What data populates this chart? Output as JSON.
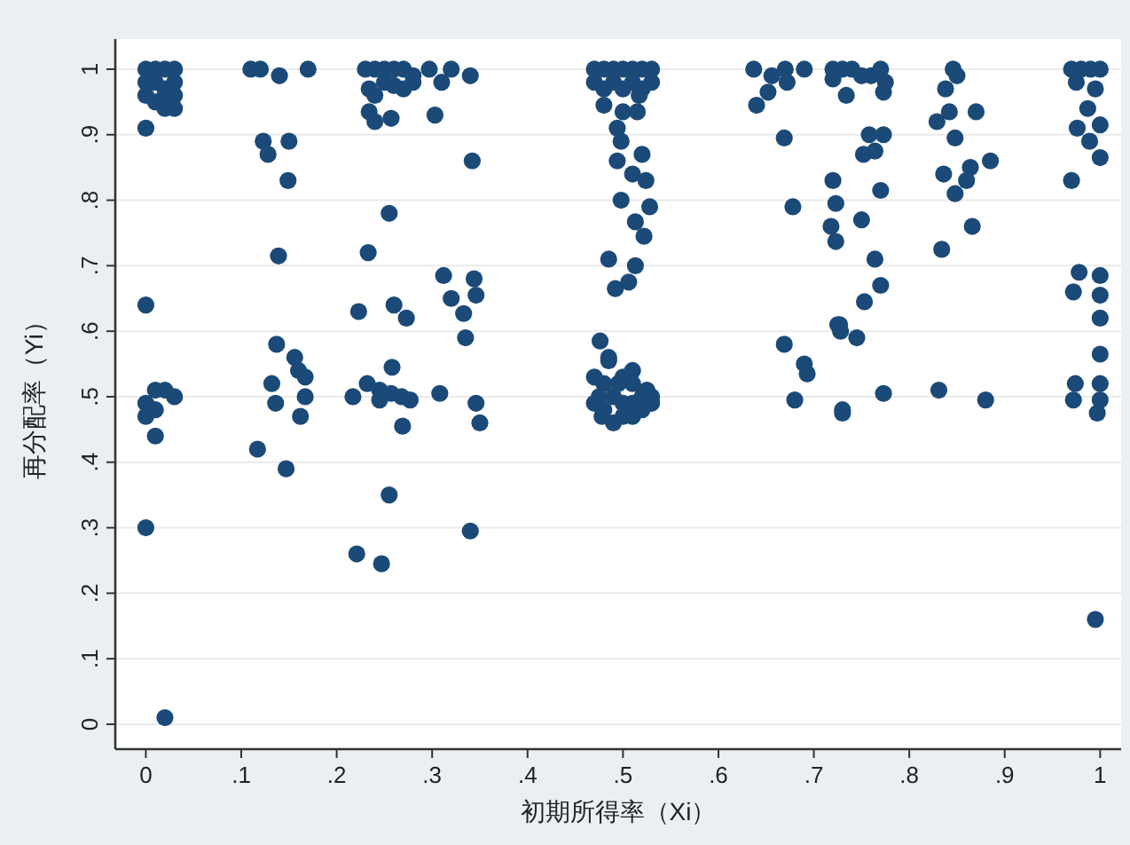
{
  "chart_data": {
    "type": "scatter",
    "xlabel": "初期所得率（Xi）",
    "ylabel": "再分配率（Yi）",
    "xlim": [
      -0.032,
      1.022
    ],
    "ylim": [
      -0.038,
      1.046
    ],
    "xticks": [
      {
        "value": 0,
        "label": "0"
      },
      {
        "value": 0.1,
        "label": ".1"
      },
      {
        "value": 0.2,
        "label": ".2"
      },
      {
        "value": 0.3,
        "label": ".3"
      },
      {
        "value": 0.4,
        "label": ".4"
      },
      {
        "value": 0.5,
        "label": ".5"
      },
      {
        "value": 0.6,
        "label": ".6"
      },
      {
        "value": 0.7,
        "label": ".7"
      },
      {
        "value": 0.8,
        "label": ".8"
      },
      {
        "value": 0.9,
        "label": ".9"
      },
      {
        "value": 1,
        "label": "1"
      }
    ],
    "yticks": [
      {
        "value": 0,
        "label": "0"
      },
      {
        "value": 0.1,
        "label": ".1"
      },
      {
        "value": 0.2,
        "label": ".2"
      },
      {
        "value": 0.3,
        "label": ".3"
      },
      {
        "value": 0.4,
        "label": ".4"
      },
      {
        "value": 0.5,
        "label": ".5"
      },
      {
        "value": 0.6,
        "label": ".6"
      },
      {
        "value": 0.7,
        "label": ".7"
      },
      {
        "value": 0.8,
        "label": ".8"
      },
      {
        "value": 0.9,
        "label": ".9"
      },
      {
        "value": 1,
        "label": "1"
      }
    ],
    "grid": "y",
    "marker": "circle",
    "series": [
      {
        "color": "#1b4a78",
        "x": [
          0.0,
          0.0,
          0.01,
          0.02,
          0.03,
          0.0,
          0.01,
          0.02,
          0.03,
          0.0,
          0.02,
          0.03,
          0.01,
          0.02,
          0.03,
          0.0,
          0.01,
          0.02,
          0.0,
          0.01,
          0.0,
          0.03,
          0.01,
          0.0,
          0.02,
          0.11,
          0.12,
          0.14,
          0.17,
          0.123,
          0.128,
          0.15,
          0.149,
          0.139,
          0.137,
          0.156,
          0.16,
          0.167,
          0.132,
          0.136,
          0.167,
          0.162,
          0.117,
          0.147,
          0.23,
          0.24,
          0.25,
          0.26,
          0.27,
          0.28,
          0.234,
          0.26,
          0.24,
          0.25,
          0.27,
          0.28,
          0.234,
          0.24,
          0.257,
          0.303,
          0.297,
          0.32,
          0.34,
          0.31,
          0.255,
          0.233,
          0.26,
          0.273,
          0.223,
          0.258,
          0.217,
          0.232,
          0.245,
          0.245,
          0.257,
          0.268,
          0.277,
          0.269,
          0.308,
          0.255,
          0.221,
          0.247,
          0.312,
          0.344,
          0.32,
          0.346,
          0.333,
          0.335,
          0.342,
          0.346,
          0.35,
          0.34,
          0.47,
          0.48,
          0.49,
          0.5,
          0.51,
          0.52,
          0.53,
          0.47,
          0.49,
          0.51,
          0.53,
          0.48,
          0.5,
          0.52,
          0.48,
          0.5,
          0.515,
          0.517,
          0.494,
          0.498,
          0.494,
          0.52,
          0.51,
          0.524,
          0.498,
          0.528,
          0.513,
          0.522,
          0.485,
          0.513,
          0.492,
          0.506,
          0.476,
          0.485,
          0.485,
          0.51,
          0.47,
          0.475,
          0.48,
          0.5,
          0.51,
          0.52,
          0.525,
          0.53,
          0.47,
          0.48,
          0.49,
          0.5,
          0.51,
          0.52,
          0.53,
          0.478,
          0.49,
          0.5,
          0.51,
          0.495,
          0.637,
          0.656,
          0.67,
          0.69,
          0.672,
          0.652,
          0.64,
          0.669,
          0.678,
          0.669,
          0.69,
          0.693,
          0.68,
          0.73,
          0.72,
          0.723,
          0.723,
          0.725,
          0.728,
          0.718,
          0.72,
          0.73,
          0.74,
          0.75,
          0.76,
          0.77,
          0.775,
          0.734,
          0.773,
          0.758,
          0.773,
          0.752,
          0.764,
          0.77,
          0.75,
          0.764,
          0.77,
          0.753,
          0.727,
          0.745,
          0.773,
          0.73,
          0.72,
          0.846,
          0.85,
          0.838,
          0.842,
          0.829,
          0.87,
          0.848,
          0.885,
          0.836,
          0.864,
          0.86,
          0.848,
          0.866,
          0.834,
          0.831,
          0.88,
          0.97,
          0.98,
          0.99,
          1.0,
          0.975,
          0.995,
          0.987,
          0.976,
          1.0,
          0.989,
          1.0,
          0.97,
          0.978,
          1.0,
          0.972,
          1.0,
          1.0,
          1.0,
          0.974,
          1.0,
          0.972,
          1.0,
          0.997,
          0.995
        ],
        "values": [
          0.91,
          1.0,
          1.0,
          1.0,
          1.0,
          0.98,
          0.98,
          0.97,
          0.98,
          0.96,
          0.96,
          0.96,
          0.95,
          0.94,
          0.94,
          0.64,
          0.51,
          0.51,
          0.49,
          0.48,
          0.47,
          0.5,
          0.44,
          0.3,
          0.01,
          1.0,
          1.0,
          0.99,
          1.0,
          0.89,
          0.87,
          0.89,
          0.83,
          0.715,
          0.58,
          0.56,
          0.54,
          0.53,
          0.52,
          0.49,
          0.5,
          0.47,
          0.42,
          0.39,
          1.0,
          1.0,
          1.0,
          1.0,
          1.0,
          0.99,
          0.97,
          0.975,
          0.96,
          0.98,
          0.97,
          0.98,
          0.935,
          0.92,
          0.925,
          0.93,
          1.0,
          1.0,
          0.99,
          0.98,
          0.78,
          0.72,
          0.64,
          0.62,
          0.63,
          0.545,
          0.5,
          0.52,
          0.51,
          0.495,
          0.505,
          0.5,
          0.495,
          0.455,
          0.505,
          0.35,
          0.26,
          0.245,
          0.685,
          0.68,
          0.65,
          0.655,
          0.627,
          0.59,
          0.86,
          0.49,
          0.46,
          0.295,
          1.0,
          1.0,
          1.0,
          1.0,
          1.0,
          1.0,
          1.0,
          0.98,
          0.98,
          0.98,
          0.98,
          0.97,
          0.97,
          0.97,
          0.945,
          0.935,
          0.935,
          0.96,
          0.91,
          0.89,
          0.86,
          0.87,
          0.84,
          0.83,
          0.8,
          0.79,
          0.767,
          0.745,
          0.71,
          0.7,
          0.665,
          0.675,
          0.585,
          0.56,
          0.555,
          0.54,
          0.53,
          0.5,
          0.52,
          0.53,
          0.52,
          0.5,
          0.51,
          0.49,
          0.49,
          0.48,
          0.5,
          0.49,
          0.47,
          0.48,
          0.5,
          0.47,
          0.46,
          0.47,
          0.49,
          0.52,
          1.0,
          0.99,
          1.0,
          1.0,
          0.98,
          0.965,
          0.945,
          0.895,
          0.79,
          0.58,
          0.55,
          0.535,
          0.495,
          0.475,
          0.83,
          0.795,
          0.737,
          0.61,
          0.6,
          0.76,
          1.0,
          1.0,
          1.0,
          0.99,
          0.99,
          1.0,
          0.98,
          0.96,
          0.965,
          0.9,
          0.9,
          0.87,
          0.875,
          0.815,
          0.77,
          0.71,
          0.67,
          0.645,
          0.61,
          0.59,
          0.505,
          0.48,
          0.985,
          1.0,
          0.99,
          0.97,
          0.935,
          0.92,
          0.935,
          0.895,
          0.86,
          0.84,
          0.85,
          0.83,
          0.81,
          0.76,
          0.725,
          0.51,
          0.495,
          1.0,
          1.0,
          1.0,
          1.0,
          0.98,
          0.97,
          0.94,
          0.91,
          0.915,
          0.89,
          0.865,
          0.83,
          0.69,
          0.685,
          0.66,
          0.655,
          0.62,
          0.565,
          0.52,
          0.52,
          0.495,
          0.495,
          0.475,
          0.16
        ]
      }
    ]
  }
}
